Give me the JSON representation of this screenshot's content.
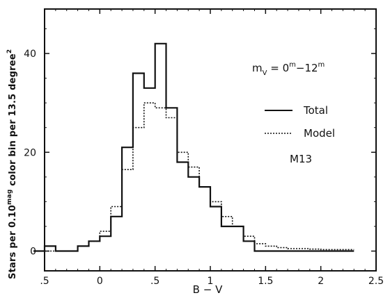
{
  "chart_data": {
    "type": "line",
    "drawstyle": "steps",
    "xlabel": "B − V",
    "ylabel": "Stars per 0.10mag color bin per 13.5 degree²",
    "ylabel_parts": {
      "pre": "Stars per 0.10",
      "sup1": "mag",
      "mid": " color bin per 13.5 degree",
      "sup2": "2"
    },
    "xlim": [
      -0.5,
      2.5
    ],
    "ylim": [
      -4,
      49
    ],
    "x_ticks": [
      -0.5,
      0,
      0.5,
      1,
      1.5,
      2,
      2.5
    ],
    "x_tick_labels": [
      ".5",
      "0",
      ".5",
      "1",
      "1.5",
      "2",
      "2.5"
    ],
    "y_ticks": [
      0,
      20,
      40
    ],
    "y_tick_labels": [
      "0",
      "20",
      "40"
    ],
    "bin_width": 0.1,
    "x": [
      -0.6,
      -0.5,
      -0.4,
      -0.3,
      -0.2,
      -0.1,
      0.0,
      0.1,
      0.2,
      0.3,
      0.4,
      0.5,
      0.6,
      0.7,
      0.8,
      0.9,
      1.0,
      1.1,
      1.2,
      1.3,
      1.4,
      1.5,
      1.6,
      1.7,
      1.8,
      1.9,
      2.0,
      2.1,
      2.2
    ],
    "series": [
      {
        "name": "Total",
        "style": "solid",
        "values": [
          0,
          1,
          0,
          0,
          1,
          2,
          3,
          7,
          21,
          36,
          33,
          42,
          29,
          18,
          15,
          13,
          9,
          5,
          5,
          2,
          0,
          0,
          0,
          0,
          0,
          0,
          0,
          0,
          0
        ]
      },
      {
        "name": "Model",
        "style": "dotted",
        "values": [
          0,
          0,
          0,
          0,
          1,
          2,
          4,
          9,
          16.5,
          25,
          30,
          29,
          27,
          20,
          17,
          13,
          10,
          7,
          5,
          3,
          1.5,
          1,
          0.7,
          0.5,
          0.5,
          0.4,
          0.3,
          0.3,
          0.3
        ]
      }
    ],
    "annotations": {
      "magnitude_range": {
        "base": "m",
        "sub": "V",
        "eq": " = 0",
        "sup1": "m",
        "dash": "−12",
        "sup2": "m"
      },
      "cluster": "M13"
    },
    "legend": {
      "placement": "right",
      "entries": [
        {
          "label": "Total",
          "style": "solid"
        },
        {
          "label": "Model",
          "style": "dotted"
        }
      ]
    },
    "grid": false
  }
}
